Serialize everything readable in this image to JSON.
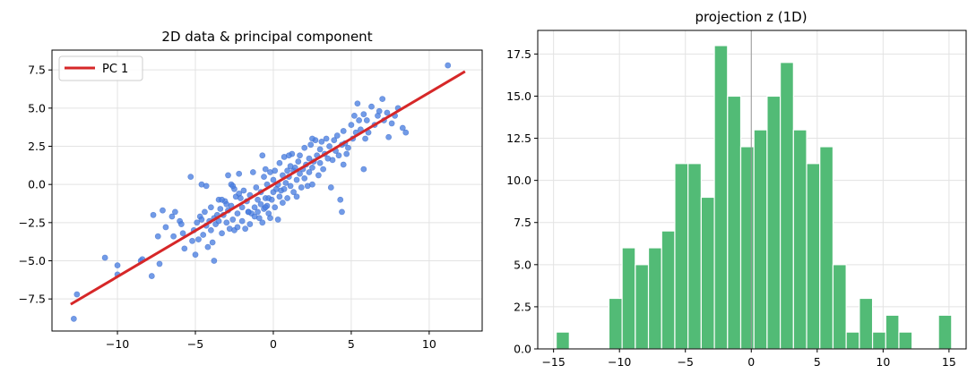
{
  "chart_data": [
    {
      "type": "scatter",
      "title": "2D data & principal component",
      "xlabel": "",
      "ylabel": "",
      "xlim": [
        -14.2,
        13.4
      ],
      "ylim": [
        -9.6,
        8.8
      ],
      "x_ticks": [
        -10,
        -5,
        0,
        5,
        10
      ],
      "y_ticks": [
        -7.5,
        -5.0,
        -2.5,
        0.0,
        2.5,
        5.0,
        7.5
      ],
      "x_tick_labels": [
        "−10",
        "−5",
        "0",
        "5",
        "10"
      ],
      "y_tick_labels": [
        "−7.5",
        "−5.0",
        "−2.5",
        "0.0",
        "2.5",
        "5.0",
        "7.5"
      ],
      "grid": true,
      "legend": {
        "position": "top-left",
        "entries": [
          "PC 1"
        ]
      },
      "colors": {
        "points": "#4a7fe0",
        "line": "#d62728"
      },
      "series": [
        {
          "type": "scatter",
          "points": [
            [
              -12.8,
              -8.8
            ],
            [
              -12.6,
              -7.2
            ],
            [
              -10.8,
              -4.8
            ],
            [
              -10.0,
              -5.3
            ],
            [
              -10.0,
              -5.9
            ],
            [
              -8.5,
              -5.0
            ],
            [
              -8.4,
              -4.9
            ],
            [
              -7.8,
              -6.0
            ],
            [
              -7.7,
              -2.0
            ],
            [
              -7.4,
              -3.4
            ],
            [
              -7.3,
              -5.2
            ],
            [
              -7.1,
              -1.7
            ],
            [
              -6.9,
              -2.8
            ],
            [
              -6.5,
              -2.1
            ],
            [
              -6.4,
              -3.4
            ],
            [
              -6.3,
              -1.8
            ],
            [
              -6.0,
              -2.4
            ],
            [
              -5.9,
              -2.6
            ],
            [
              -5.8,
              -3.2
            ],
            [
              -5.7,
              -4.2
            ],
            [
              -5.3,
              0.5
            ],
            [
              -5.2,
              -3.7
            ],
            [
              -5.1,
              -3.0
            ],
            [
              -5.0,
              -4.6
            ],
            [
              -4.9,
              -2.5
            ],
            [
              -4.8,
              -3.6
            ],
            [
              -4.7,
              -2.1
            ],
            [
              -4.6,
              -2.3
            ],
            [
              -4.6,
              0.0
            ],
            [
              -4.5,
              -3.3
            ],
            [
              -4.4,
              -1.8
            ],
            [
              -4.3,
              -2.7
            ],
            [
              -4.2,
              -4.1
            ],
            [
              -4.1,
              -2.4
            ],
            [
              -4.0,
              -3.0
            ],
            [
              -4.0,
              -1.5
            ],
            [
              -3.9,
              -3.8
            ],
            [
              -3.8,
              -2.2
            ],
            [
              -3.8,
              -5.0
            ],
            [
              -3.7,
              -2.6
            ],
            [
              -3.6,
              -2.0
            ],
            [
              -3.5,
              -2.4
            ],
            [
              -3.5,
              -1.0
            ],
            [
              -3.4,
              -1.6
            ],
            [
              -3.3,
              -3.2
            ],
            [
              -3.2,
              -2.0
            ],
            [
              -3.1,
              -1.1
            ],
            [
              -3.0,
              -2.5
            ],
            [
              -3.0,
              -1.3
            ],
            [
              -2.9,
              0.6
            ],
            [
              -2.9,
              -1.7
            ],
            [
              -2.8,
              -2.9
            ],
            [
              -2.7,
              -1.4
            ],
            [
              -2.7,
              0.0
            ],
            [
              -2.6,
              -2.3
            ],
            [
              -2.5,
              -3.0
            ],
            [
              -2.5,
              -0.3
            ],
            [
              -2.4,
              -0.8
            ],
            [
              -2.3,
              -1.9
            ],
            [
              -2.3,
              -2.8
            ],
            [
              -2.2,
              -0.6
            ],
            [
              -2.2,
              0.7
            ],
            [
              -2.1,
              -0.9
            ],
            [
              -2.0,
              -1.5
            ],
            [
              -2.0,
              -2.4
            ],
            [
              -1.9,
              -0.4
            ],
            [
              -1.8,
              -2.9
            ],
            [
              -1.7,
              -1.1
            ],
            [
              -1.6,
              -1.8
            ],
            [
              -1.5,
              -2.6
            ],
            [
              -1.5,
              -0.7
            ],
            [
              -1.4,
              -1.9
            ],
            [
              -1.3,
              0.8
            ],
            [
              -1.2,
              -1.5
            ],
            [
              -1.2,
              -2.1
            ],
            [
              -1.1,
              -0.2
            ],
            [
              -1.0,
              -1.0
            ],
            [
              -1.0,
              -1.8
            ],
            [
              -0.9,
              -2.2
            ],
            [
              -0.8,
              -0.5
            ],
            [
              -0.8,
              -1.3
            ],
            [
              -0.7,
              1.9
            ],
            [
              -0.7,
              -2.5
            ],
            [
              -0.6,
              0.5
            ],
            [
              -0.6,
              -1.6
            ],
            [
              -0.5,
              -0.9
            ],
            [
              -0.5,
              1.0
            ],
            [
              -0.4,
              -1.4
            ],
            [
              -0.4,
              0.0
            ],
            [
              -0.3,
              -0.9
            ],
            [
              -0.3,
              -1.9
            ],
            [
              -0.2,
              0.8
            ],
            [
              -0.2,
              -2.2
            ],
            [
              -0.1,
              -1.0
            ],
            [
              0.0,
              -0.5
            ],
            [
              0.0,
              0.3
            ],
            [
              0.1,
              -1.5
            ],
            [
              0.1,
              0.9
            ],
            [
              0.2,
              -0.3
            ],
            [
              0.3,
              0.0
            ],
            [
              0.3,
              -2.3
            ],
            [
              0.4,
              1.4
            ],
            [
              0.4,
              -0.8
            ],
            [
              0.5,
              -0.4
            ],
            [
              0.6,
              0.6
            ],
            [
              0.6,
              -1.2
            ],
            [
              0.7,
              -0.3
            ],
            [
              0.7,
              1.8
            ],
            [
              0.8,
              0.1
            ],
            [
              0.9,
              -0.9
            ],
            [
              0.9,
              0.9
            ],
            [
              1.0,
              0.5
            ],
            [
              1.1,
              1.2
            ],
            [
              1.1,
              -0.1
            ],
            [
              1.2,
              2.0
            ],
            [
              1.3,
              0.9
            ],
            [
              1.3,
              -0.5
            ],
            [
              1.4,
              1.1
            ],
            [
              1.5,
              0.3
            ],
            [
              1.5,
              -0.8
            ],
            [
              1.6,
              1.5
            ],
            [
              1.7,
              0.7
            ],
            [
              1.7,
              1.9
            ],
            [
              1.8,
              -0.2
            ],
            [
              1.9,
              1.0
            ],
            [
              2.0,
              2.4
            ],
            [
              2.0,
              0.4
            ],
            [
              2.1,
              1.3
            ],
            [
              2.2,
              -0.1
            ],
            [
              2.3,
              1.7
            ],
            [
              2.3,
              0.8
            ],
            [
              2.4,
              2.6
            ],
            [
              2.5,
              1.1
            ],
            [
              2.5,
              0.0
            ],
            [
              2.6,
              1.5
            ],
            [
              2.7,
              2.9
            ],
            [
              2.8,
              1.9
            ],
            [
              2.9,
              0.6
            ],
            [
              3.0,
              2.3
            ],
            [
              3.0,
              1.4
            ],
            [
              3.1,
              2.8
            ],
            [
              3.2,
              1.0
            ],
            [
              3.3,
              2.0
            ],
            [
              3.4,
              3.0
            ],
            [
              3.5,
              1.7
            ],
            [
              3.6,
              2.5
            ],
            [
              3.7,
              -0.2
            ],
            [
              3.8,
              1.6
            ],
            [
              3.9,
              2.9
            ],
            [
              4.0,
              2.2
            ],
            [
              4.1,
              3.2
            ],
            [
              4.2,
              1.9
            ],
            [
              4.3,
              -1.0
            ],
            [
              4.4,
              2.6
            ],
            [
              4.5,
              1.3
            ],
            [
              4.5,
              3.5
            ],
            [
              4.6,
              2.7
            ],
            [
              4.7,
              2.0
            ],
            [
              4.8,
              2.4
            ],
            [
              5.0,
              3.9
            ],
            [
              5.1,
              3.0
            ],
            [
              5.2,
              4.5
            ],
            [
              5.3,
              3.4
            ],
            [
              5.4,
              5.3
            ],
            [
              5.5,
              4.2
            ],
            [
              5.6,
              3.6
            ],
            [
              5.8,
              4.6
            ],
            [
              5.9,
              3.0
            ],
            [
              6.0,
              4.2
            ],
            [
              6.1,
              3.4
            ],
            [
              6.3,
              5.1
            ],
            [
              6.5,
              3.9
            ],
            [
              6.7,
              4.5
            ],
            [
              6.8,
              4.8
            ],
            [
              7.0,
              5.6
            ],
            [
              7.1,
              4.2
            ],
            [
              7.3,
              4.7
            ],
            [
              7.4,
              3.1
            ],
            [
              7.6,
              4.0
            ],
            [
              7.8,
              4.5
            ],
            [
              8.0,
              5.0
            ],
            [
              8.3,
              3.7
            ],
            [
              8.5,
              3.4
            ],
            [
              5.8,
              1.0
            ],
            [
              11.2,
              7.8
            ],
            [
              2.5,
              3.0
            ],
            [
              1.0,
              1.9
            ],
            [
              -1.6,
              -1.8
            ],
            [
              -2.6,
              -0.1
            ],
            [
              -4.3,
              -0.1
            ],
            [
              4.4,
              -1.8
            ],
            [
              -3.3,
              -1.0
            ],
            [
              -0.5,
              -1.5
            ]
          ]
        },
        {
          "name": "PC 1",
          "type": "line",
          "points": [
            [
              -13.0,
              -7.85
            ],
            [
              12.3,
              7.4
            ]
          ]
        }
      ]
    },
    {
      "type": "bar",
      "title": "projection z  (1D)",
      "xlabel": "",
      "ylabel": "",
      "xlim": [
        -16.2,
        16.3
      ],
      "ylim": [
        0,
        18.9
      ],
      "x_ticks": [
        -15,
        -10,
        -5,
        0,
        5,
        10,
        15
      ],
      "y_ticks": [
        0.0,
        2.5,
        5.0,
        7.5,
        10.0,
        12.5,
        15.0,
        17.5
      ],
      "x_tick_labels": [
        "−15",
        "−10",
        "−5",
        "0",
        "5",
        "10",
        "15"
      ],
      "y_tick_labels": [
        "0.0",
        "2.5",
        "5.0",
        "7.5",
        "10.0",
        "12.5",
        "15.0",
        "17.5"
      ],
      "grid": true,
      "vline_x": 0,
      "colors": {
        "bars": "#52bb76",
        "vline": "#999999"
      },
      "bins": {
        "edges": [
          -14.8,
          -13.8,
          -12.8,
          -11.8,
          -10.8,
          -9.8,
          -8.8,
          -7.8,
          -6.8,
          -5.8,
          -4.8,
          -3.8,
          -2.8,
          -1.8,
          -0.8,
          0.2,
          1.2,
          2.2,
          3.2,
          4.2,
          5.2,
          6.2,
          7.2,
          8.2,
          9.2,
          10.2,
          11.2,
          12.2,
          13.2,
          14.2,
          15.2
        ],
        "values": [
          1,
          0,
          0,
          0,
          3,
          6,
          5,
          6,
          7,
          11,
          11,
          9,
          18,
          15,
          12,
          13,
          15,
          17,
          13,
          11,
          12,
          5,
          1,
          3,
          1,
          2,
          1,
          0,
          0,
          2
        ]
      }
    }
  ]
}
